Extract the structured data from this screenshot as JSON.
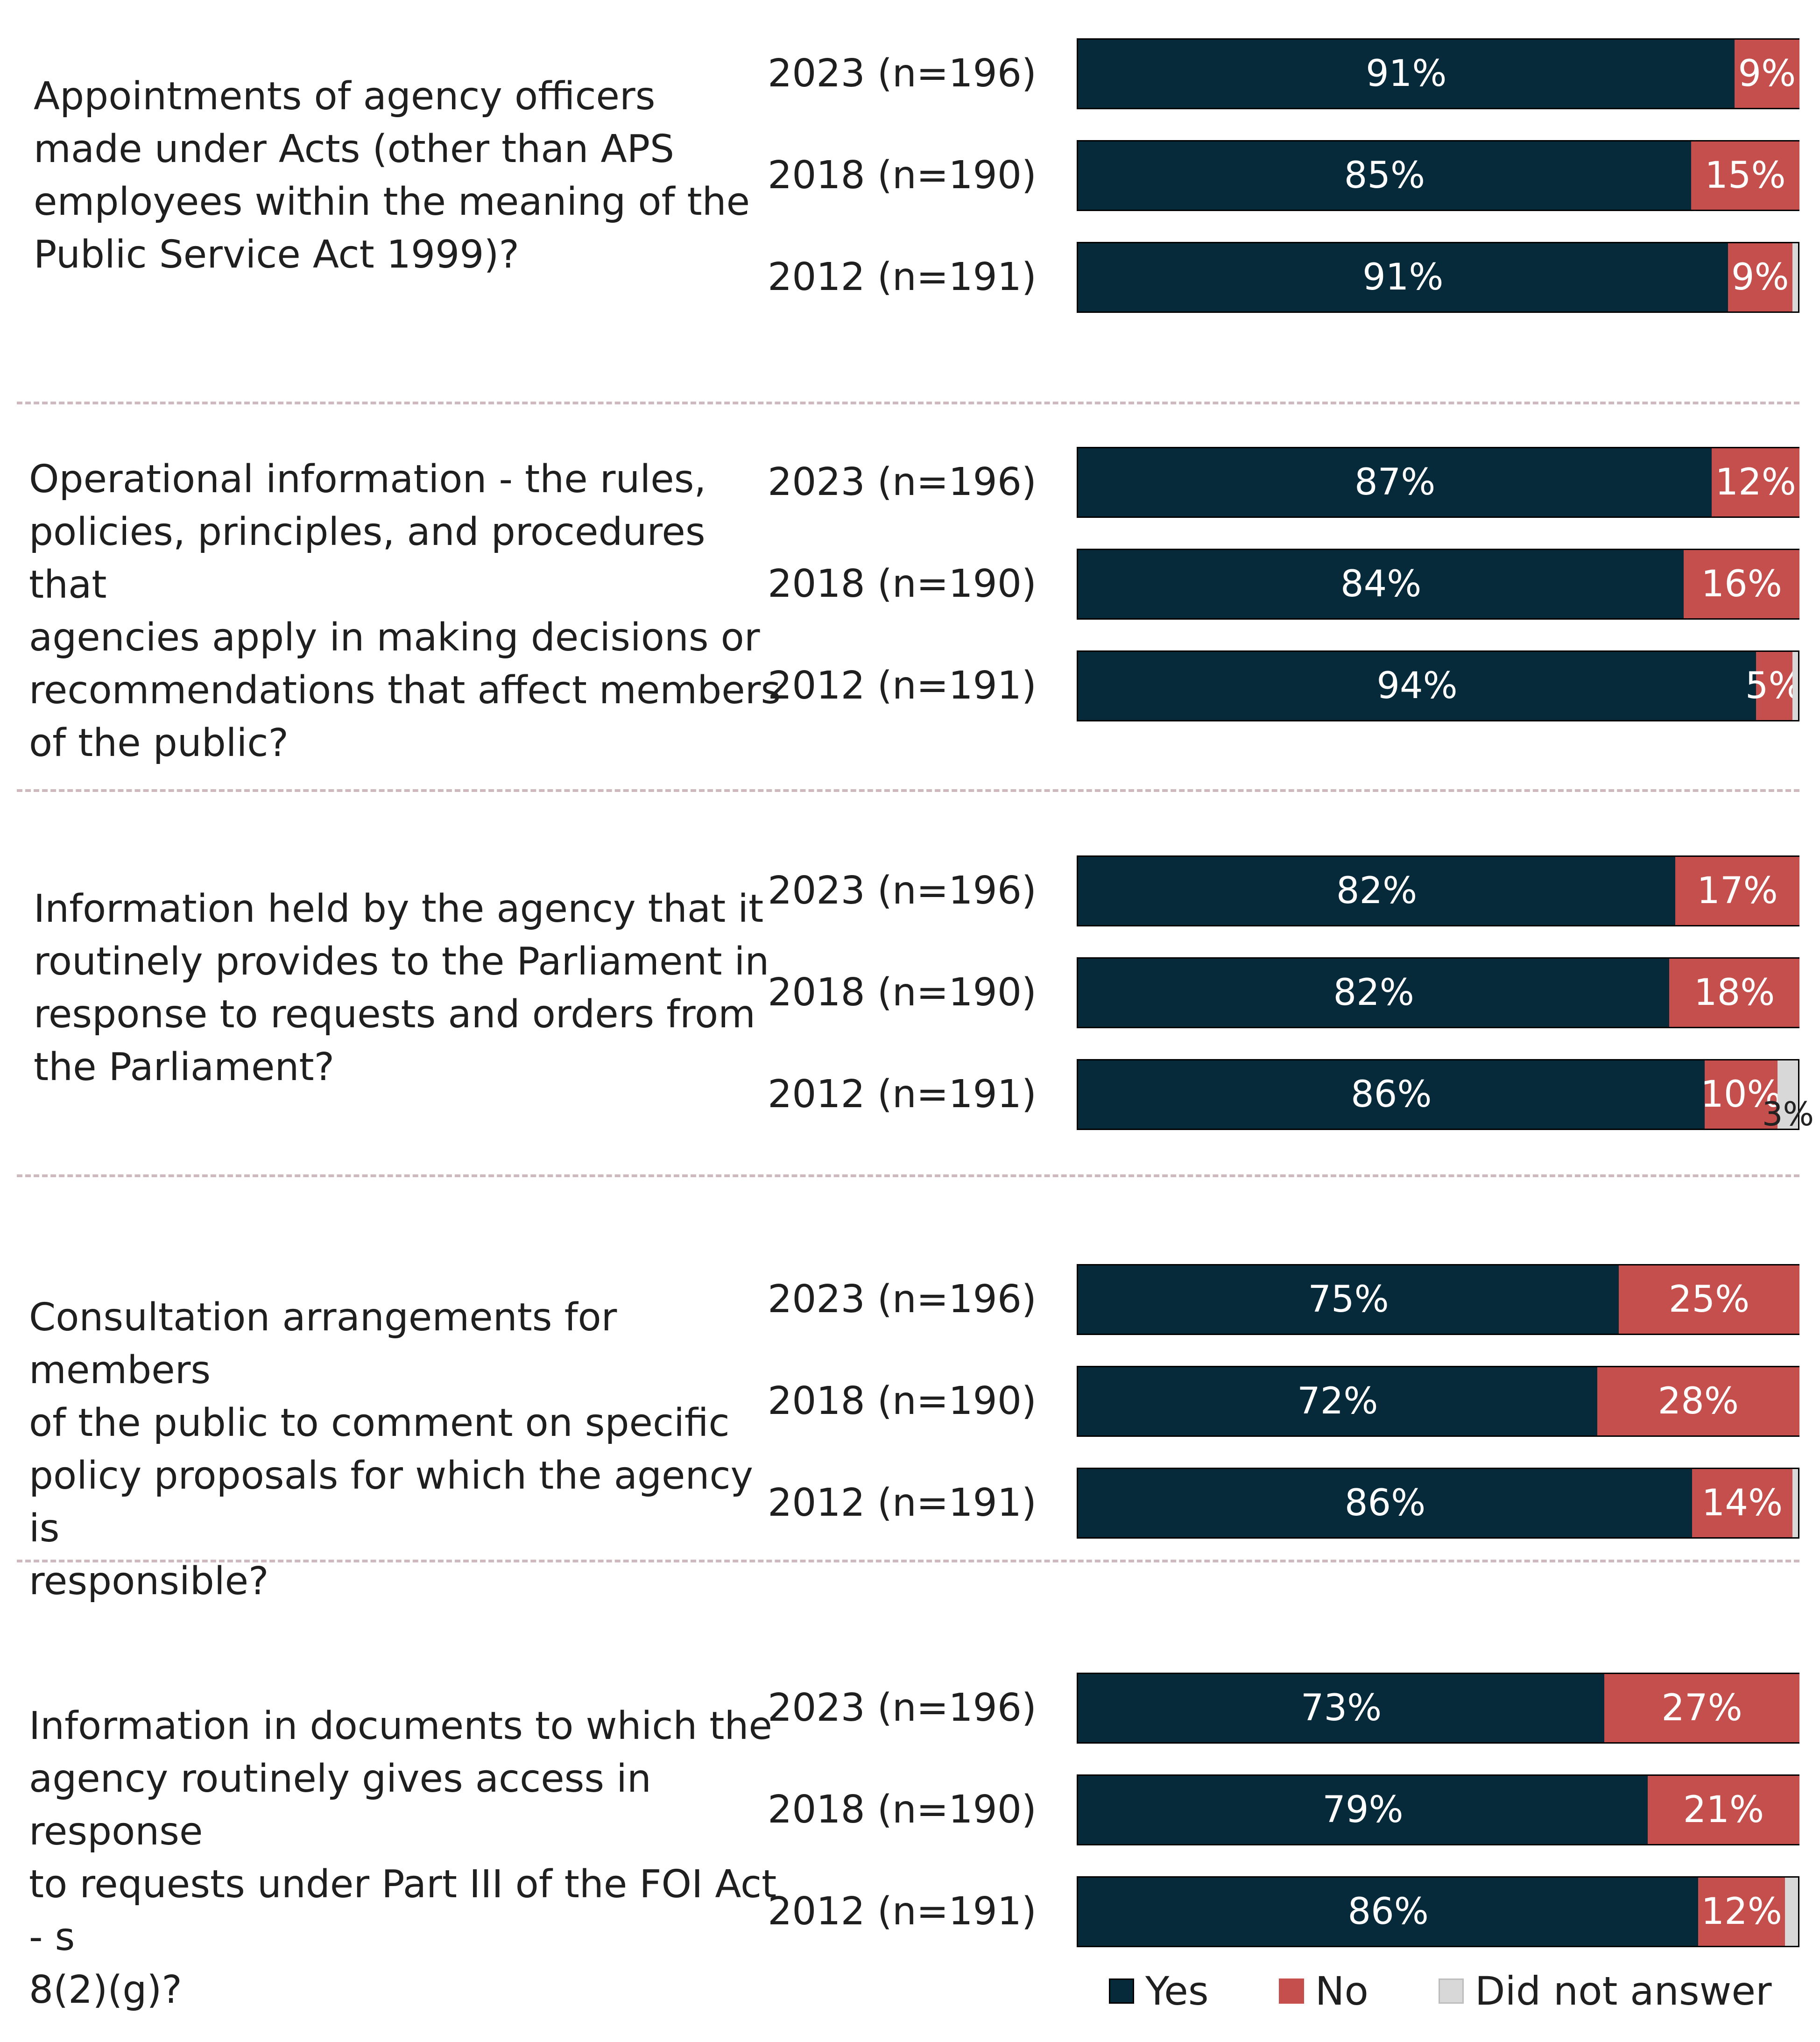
{
  "colors": {
    "yes": "#062a3a",
    "no": "#c44f4d",
    "dna": "#d8d8d8"
  },
  "legend": {
    "yes": "Yes",
    "no": "No",
    "dna": "Did not answer"
  },
  "chart_data": {
    "type": "bar",
    "orientation": "horizontal",
    "stacked": true,
    "units": "percent",
    "xlim": [
      0,
      100
    ],
    "legend_position": "bottom-right",
    "series_names": [
      "Yes",
      "No",
      "Did not answer"
    ],
    "groups": [
      {
        "question": "Appointments of agency officers made under Acts (other than APS employees within the meaning of the Public Service Act 1999)?",
        "question_lines": [
          "Appointments of agency officers",
          "made under Acts (other than APS",
          "employees within the meaning of the",
          "Public Service Act 1999)?"
        ],
        "rows": [
          {
            "label": "2023 (n=196)",
            "yes": 91,
            "no": 9,
            "dna": 0,
            "yes_label": "91%",
            "no_label": "9%",
            "dna_label": ""
          },
          {
            "label": "2018 (n=190)",
            "yes": 85,
            "no": 15,
            "dna": 0,
            "yes_label": "85%",
            "no_label": "15%",
            "dna_label": ""
          },
          {
            "label": "2012 (n=191)",
            "yes": 91,
            "no": 9,
            "dna": 1,
            "yes_label": "91%",
            "no_label": "9%",
            "dna_label": ""
          }
        ]
      },
      {
        "question": "Operational information - the rules, policies, principles, and procedures that agencies apply in making decisions or recommendations that affect members of the public?",
        "question_lines": [
          "Operational information - the rules,",
          "policies, principles, and procedures that",
          "agencies apply in making decisions or",
          "recommendations that affect members",
          "of the public?"
        ],
        "rows": [
          {
            "label": "2023 (n=196)",
            "yes": 87,
            "no": 12,
            "dna": 0,
            "yes_label": "87%",
            "no_label": "12%",
            "dna_label": ""
          },
          {
            "label": "2018 (n=190)",
            "yes": 84,
            "no": 16,
            "dna": 0,
            "yes_label": "84%",
            "no_label": "16%",
            "dna_label": ""
          },
          {
            "label": "2012 (n=191)",
            "yes": 94,
            "no": 5,
            "dna": 1,
            "yes_label": "94%",
            "no_label": "5%",
            "dna_label": ""
          }
        ]
      },
      {
        "question": "Information held by the agency that it routinely provides to the Parliament in response to requests and orders from the Parliament?",
        "question_lines": [
          "Information held by the agency that it",
          "routinely provides to the Parliament in",
          "response to requests and orders from",
          "the Parliament?"
        ],
        "rows": [
          {
            "label": "2023 (n=196)",
            "yes": 82,
            "no": 17,
            "dna": 0,
            "yes_label": "82%",
            "no_label": "17%",
            "dna_label": ""
          },
          {
            "label": "2018 (n=190)",
            "yes": 82,
            "no": 18,
            "dna": 0,
            "yes_label": "82%",
            "no_label": "18%",
            "dna_label": ""
          },
          {
            "label": "2012 (n=191)",
            "yes": 86,
            "no": 10,
            "dna": 3,
            "yes_label": "86%",
            "no_label": "10%",
            "dna_label": "3%"
          }
        ]
      },
      {
        "question": "Consultation arrangements for members of the public to comment on specific policy proposals for which the agency is responsible?",
        "question_lines": [
          "Consultation arrangements for members",
          "of the public to comment on specific",
          "policy proposals for which the agency is",
          "responsible?"
        ],
        "rows": [
          {
            "label": "2023 (n=196)",
            "yes": 75,
            "no": 25,
            "dna": 0,
            "yes_label": "75%",
            "no_label": "25%",
            "dna_label": ""
          },
          {
            "label": "2018 (n=190)",
            "yes": 72,
            "no": 28,
            "dna": 0,
            "yes_label": "72%",
            "no_label": "28%",
            "dna_label": ""
          },
          {
            "label": "2012 (n=191)",
            "yes": 86,
            "no": 14,
            "dna": 1,
            "yes_label": "86%",
            "no_label": "14%",
            "dna_label": ""
          }
        ]
      },
      {
        "question": "Information in documents to which the agency routinely gives access in response to requests under Part III of the FOI Act - s 8(2)(g)?",
        "question_lines": [
          "Information in documents to which the",
          "agency routinely gives access in response",
          "to requests under Part III of the FOI Act - s",
          "8(2)(g)?"
        ],
        "rows": [
          {
            "label": "2023 (n=196)",
            "yes": 73,
            "no": 27,
            "dna": 0,
            "yes_label": "73%",
            "no_label": "27%",
            "dna_label": ""
          },
          {
            "label": "2018 (n=190)",
            "yes": 79,
            "no": 21,
            "dna": 0,
            "yes_label": "79%",
            "no_label": "21%",
            "dna_label": ""
          },
          {
            "label": "2012 (n=191)",
            "yes": 86,
            "no": 12,
            "dna": 2,
            "yes_label": "86%",
            "no_label": "12%",
            "dna_label": ""
          }
        ]
      }
    ]
  }
}
